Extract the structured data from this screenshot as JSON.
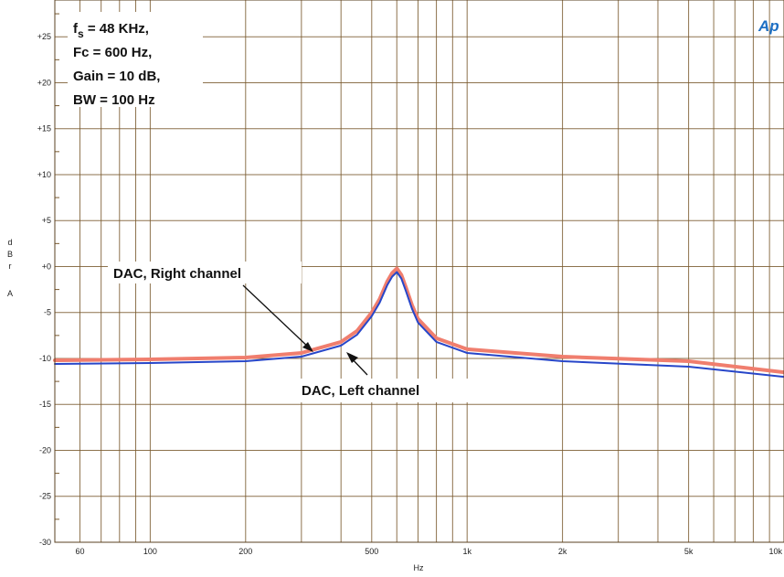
{
  "logo": "Ap",
  "params_box": {
    "line1_main": "f",
    "line1_sub": "s",
    "line1_rest": " = 48 KHz,",
    "line2": "Fc = 600 Hz,",
    "line3": "Gain = 10 dB,",
    "line4": "BW = 100 Hz"
  },
  "annotations": {
    "right": "DAC, Right channel",
    "left": "DAC, Left channel"
  },
  "colors": {
    "grid": "#7a5a2e",
    "right_channel": "#f07e6e",
    "left_channel": "#2746c9",
    "logo": "#1d6fc4"
  },
  "chart_data": {
    "type": "line",
    "xlabel": "Hz",
    "ylabel": [
      "d",
      "B",
      "r",
      "",
      "A"
    ],
    "x_scale": "log",
    "xlim": [
      50,
      10000
    ],
    "ylim": [
      -30,
      29
    ],
    "grid": true,
    "x_tick_labels": [
      {
        "value": 60,
        "label": "60"
      },
      {
        "value": 100,
        "label": "100"
      },
      {
        "value": 200,
        "label": "200"
      },
      {
        "value": 500,
        "label": "500"
      },
      {
        "value": 1000,
        "label": "1k"
      },
      {
        "value": 2000,
        "label": "2k"
      },
      {
        "value": 5000,
        "label": "5k"
      },
      {
        "value": 10000,
        "label": "10k"
      }
    ],
    "y_tick_labels": [
      {
        "value": 25,
        "label": "+25"
      },
      {
        "value": 20,
        "label": "+20"
      },
      {
        "value": 15,
        "label": "+15"
      },
      {
        "value": 10,
        "label": "+10"
      },
      {
        "value": 5,
        "label": "+5"
      },
      {
        "value": 0,
        "label": "+0"
      },
      {
        "value": -5,
        "label": "-5"
      },
      {
        "value": -10,
        "label": "-10"
      },
      {
        "value": -15,
        "label": "-15"
      },
      {
        "value": -20,
        "label": "-20"
      },
      {
        "value": -25,
        "label": "-25"
      },
      {
        "value": -30,
        "label": "-30"
      }
    ],
    "series": [
      {
        "name": "DAC, Right channel",
        "x": [
          50,
          100,
          200,
          300,
          400,
          450,
          500,
          530,
          560,
          580,
          600,
          620,
          640,
          670,
          700,
          800,
          1000,
          2000,
          5000,
          10000
        ],
        "y": [
          -10.2,
          -10.1,
          -9.9,
          -9.4,
          -8.2,
          -7.0,
          -5.0,
          -3.5,
          -1.6,
          -0.7,
          -0.2,
          -0.9,
          -2.2,
          -4.2,
          -5.7,
          -7.8,
          -9.0,
          -9.8,
          -10.3,
          -11.5
        ]
      },
      {
        "name": "DAC, Left channel",
        "x": [
          50,
          100,
          200,
          300,
          400,
          450,
          500,
          530,
          560,
          580,
          600,
          620,
          640,
          670,
          700,
          800,
          1000,
          2000,
          5000,
          10000
        ],
        "y": [
          -10.6,
          -10.5,
          -10.3,
          -9.8,
          -8.6,
          -7.4,
          -5.4,
          -3.9,
          -2.0,
          -1.1,
          -0.6,
          -1.3,
          -2.6,
          -4.6,
          -6.1,
          -8.2,
          -9.4,
          -10.3,
          -10.9,
          -12.0
        ]
      }
    ]
  }
}
